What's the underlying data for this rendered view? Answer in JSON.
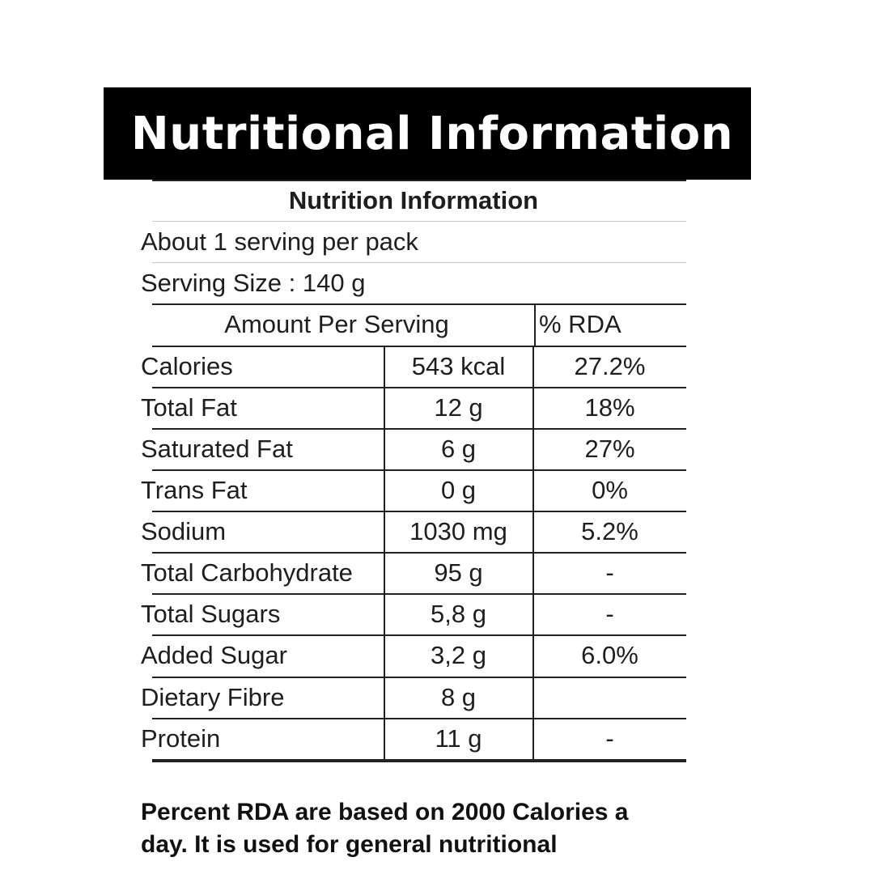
{
  "banner": {
    "title": "Nutritional Information"
  },
  "label": {
    "title": "Nutrition Information",
    "servings_per_pack": "About  1 serving per pack",
    "serving_size": "Serving Size : 140 g",
    "header": {
      "amount": "Amount Per  Serving",
      "rda": "% RDA"
    },
    "rows": [
      {
        "name": "Calories",
        "amount": "543 kcal",
        "rda": "27.2%"
      },
      {
        "name": "Total Fat",
        "amount": "12 g",
        "rda": "18%"
      },
      {
        "name": "Saturated Fat",
        "amount": "6 g",
        "rda": "27%"
      },
      {
        "name": "Trans Fat",
        "amount": "0 g",
        "rda": "0%"
      },
      {
        "name": "Sodium",
        "amount": "1030 mg",
        "rda": "5.2%"
      },
      {
        "name": "Total Carbohydrate",
        "amount": "95 g",
        "rda": "-"
      },
      {
        "name": "Total Sugars",
        "amount": "5,8 g",
        "rda": "-"
      },
      {
        "name": "Added Sugar",
        "amount": "3,2 g",
        "rda": "6.0%"
      },
      {
        "name": "Dietary Fibre",
        "amount": "8 g",
        "rda": ""
      },
      {
        "name": "Protein",
        "amount": "11 g",
        "rda": "-"
      }
    ],
    "footnote_line1": "Percent RDA are based on 2000 Calories a",
    "footnote_line2": "day. It is used for general nutritional"
  }
}
